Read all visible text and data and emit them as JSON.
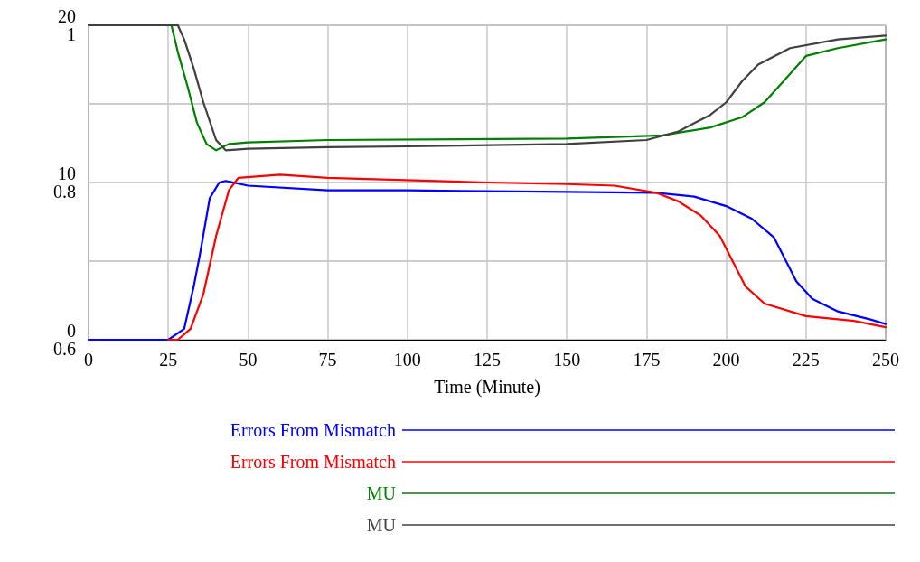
{
  "chart_data": {
    "type": "line",
    "xlabel": "Time (Minute)",
    "xlim": [
      0,
      250
    ],
    "xticks": [
      0,
      25,
      50,
      75,
      100,
      125,
      150,
      175,
      200,
      225,
      250
    ],
    "ylim": [
      0,
      20
    ],
    "yticks": [
      0,
      {
        "value": 5,
        "label": null
      },
      10,
      {
        "value": 15,
        "label": null
      },
      20
    ],
    "y2lim": [
      0.6,
      1
    ],
    "y2ticks": [
      0.6,
      {
        "value": 0.7,
        "label": null
      },
      0.8,
      {
        "value": 0.9,
        "label": null
      },
      1
    ],
    "grid": true,
    "legend": "bottom",
    "marker": "none",
    "line_style": "solid",
    "series": [
      {
        "name": "Errors From Mismatch",
        "color": "#0000ff",
        "x": [
          0,
          25,
          30,
          33,
          35,
          38,
          41,
          43,
          50,
          75,
          100,
          150,
          178,
          190,
          200,
          208,
          215,
          218,
          222,
          227,
          235,
          245,
          250
        ],
        "values": [
          0,
          0,
          0.7,
          3.4,
          5.5,
          9,
          10,
          10.1,
          9.8,
          9.5,
          9.5,
          9.4,
          9.35,
          9.1,
          8.5,
          7.7,
          6.5,
          5.3,
          3.7,
          2.6,
          1.8,
          1.3,
          1.0
        ]
      },
      {
        "name": "Errors From Mismatch",
        "color": "#ff0000",
        "x": [
          25,
          28,
          32,
          36,
          40,
          44,
          47,
          60,
          75,
          125,
          150,
          165,
          178,
          185,
          192,
          198,
          202,
          206,
          212,
          225,
          240,
          250
        ],
        "values": [
          0,
          0,
          0.7,
          2.9,
          6.6,
          9.5,
          10.3,
          10.5,
          10.3,
          10,
          9.9,
          9.8,
          9.35,
          8.8,
          7.9,
          6.6,
          5,
          3.4,
          2.3,
          1.5,
          1.2,
          0.8
        ]
      },
      {
        "name": "MU",
        "color": "#008000",
        "axis": "y2",
        "x": [
          0,
          26,
          28,
          31,
          34,
          37,
          40,
          44,
          50,
          75,
          150,
          180,
          195,
          205,
          212,
          218,
          225,
          235,
          250
        ],
        "values": [
          1,
          1,
          0.966,
          0.923,
          0.876,
          0.849,
          0.841,
          0.849,
          0.851,
          0.854,
          0.856,
          0.86,
          0.87,
          0.883,
          0.902,
          0.929,
          0.961,
          0.971,
          0.982
        ]
      },
      {
        "name": "MU",
        "color": "#404040",
        "axis": "y2",
        "x": [
          0,
          28,
          30,
          33,
          36,
          40,
          43,
          50,
          75,
          100,
          150,
          175,
          185,
          195,
          200,
          205,
          210,
          220,
          235,
          250
        ],
        "values": [
          1,
          1,
          0.982,
          0.945,
          0.902,
          0.854,
          0.841,
          0.843,
          0.845,
          0.846,
          0.849,
          0.854,
          0.865,
          0.886,
          0.902,
          0.929,
          0.95,
          0.971,
          0.982,
          0.987
        ]
      }
    ]
  }
}
